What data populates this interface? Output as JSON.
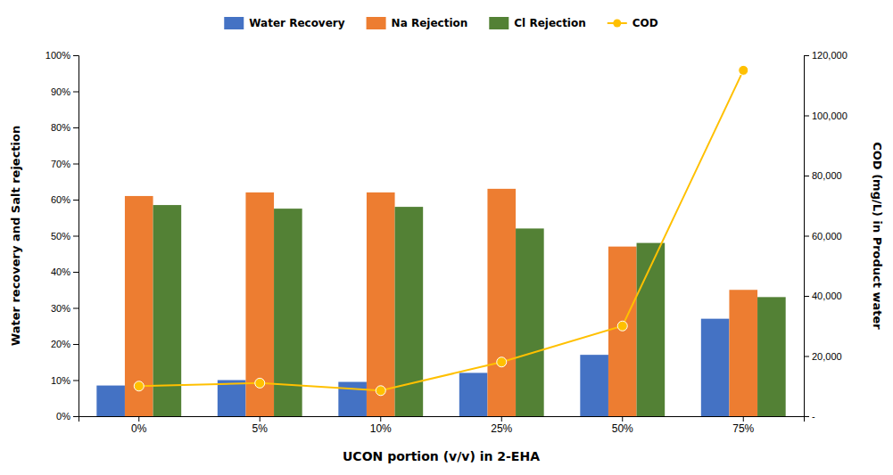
{
  "chart_data": {
    "type": "bar",
    "categories": [
      "0%",
      "5%",
      "10%",
      "25%",
      "50%",
      "75%"
    ],
    "xlabel": "UCON portion (v/v) in 2-EHA",
    "ylabel": "Water recovery and Salt rejection",
    "y2label": "COD (mg/L) in Product water",
    "series": [
      {
        "name": "Water Recovery",
        "color": "#4472C4",
        "values": [
          0.085,
          0.1,
          0.095,
          0.12,
          0.17,
          0.27
        ]
      },
      {
        "name": "Na Rejection",
        "color": "#ED7D31",
        "values": [
          0.61,
          0.62,
          0.62,
          0.63,
          0.47,
          0.35
        ]
      },
      {
        "name": "Cl Rejection",
        "color": "#538135",
        "values": [
          0.585,
          0.575,
          0.58,
          0.52,
          0.48,
          0.33
        ]
      },
      {
        "name": "COD",
        "color": "#FFC000",
        "type": "line",
        "axis": "y2",
        "marker": "circle",
        "values": [
          10000,
          11000,
          8500,
          18000,
          30000,
          115000
        ]
      }
    ],
    "ylim": [
      0,
      1.0
    ],
    "yticks": [
      {
        "value": 0.0,
        "label": "0%"
      },
      {
        "value": 0.1,
        "label": "10%"
      },
      {
        "value": 0.2,
        "label": "20%"
      },
      {
        "value": 0.3,
        "label": "30%"
      },
      {
        "value": 0.4,
        "label": "40%"
      },
      {
        "value": 0.5,
        "label": "50%"
      },
      {
        "value": 0.6,
        "label": "60%"
      },
      {
        "value": 0.7,
        "label": "70%"
      },
      {
        "value": 0.8,
        "label": "80%"
      },
      {
        "value": 0.9,
        "label": "90%"
      },
      {
        "value": 1.0,
        "label": "100%"
      }
    ],
    "y2lim": [
      0,
      120000
    ],
    "y2ticks": [
      {
        "value": 0,
        "label": "-"
      },
      {
        "value": 20000,
        "label": "20,000"
      },
      {
        "value": 40000,
        "label": "40,000"
      },
      {
        "value": 60000,
        "label": "60,000"
      },
      {
        "value": 80000,
        "label": "80,000"
      },
      {
        "value": 100000,
        "label": "100,000"
      },
      {
        "value": 120000,
        "label": "120,000"
      }
    ],
    "legend": "top",
    "grid": false
  }
}
